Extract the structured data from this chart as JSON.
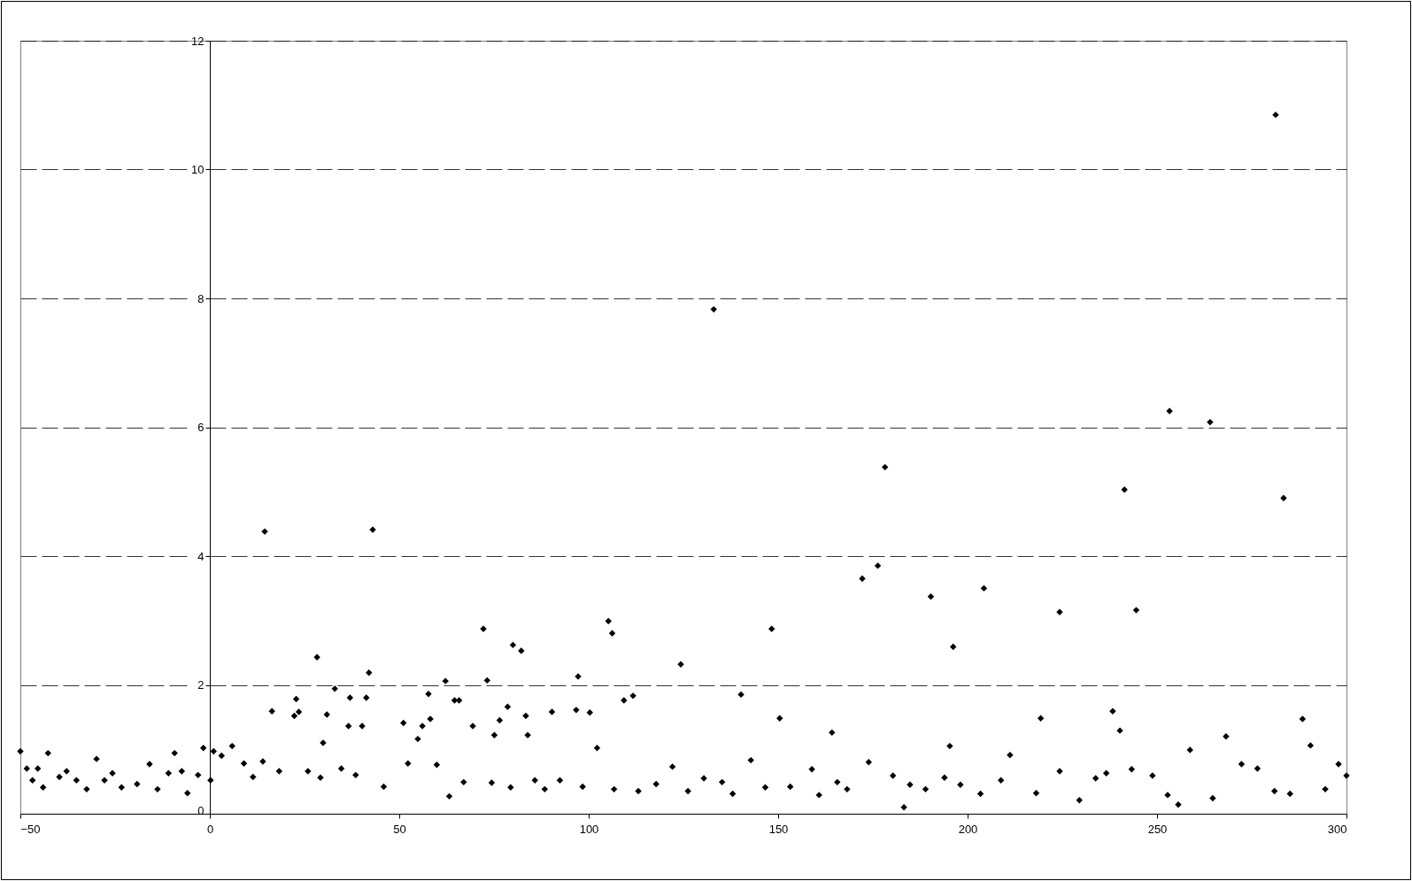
{
  "chart_data": {
    "type": "scatter",
    "marker": "diamond",
    "grid": "y",
    "line_style": "dashed",
    "legend": false,
    "xlim": [
      -50,
      300
    ],
    "xticks": [
      -50,
      0,
      50,
      100,
      150,
      200,
      250,
      300
    ],
    "ylim": [
      0,
      12
    ],
    "yticks": [
      0,
      2,
      4,
      6,
      8,
      10,
      12
    ],
    "series": [
      {
        "color": "#000000",
        "x": [
          14.5,
          43,
          28.3,
          33,
          42,
          72.2,
          73.2,
          80,
          82.2,
          62.2,
          97.2,
          105.2,
          106.2,
          124.3,
          133,
          148.3,
          140.2,
          172.2,
          176.3,
          178.2,
          190.3,
          196.2,
          204.3,
          224.3,
          241.4,
          244.5,
          253.3,
          264,
          281.3,
          283.4,
          238.3,
          240.2,
          288.4,
          164.2,
          150.4,
          219.3,
          195.3,
          109.3,
          111.7,
          90.3,
          57.7,
          23.5,
          22.8,
          16.4,
          22.3,
          37,
          41.3,
          30.9,
          36.6,
          40.2,
          58.2,
          78.6,
          76.5,
          83.4,
          96.7,
          100.3,
          69.4,
          64.6,
          65.8,
          51.1,
          54.9,
          56.1,
          75.1,
          83.9,
          -50,
          -48.3,
          -46.8,
          -45.4,
          -44,
          -42.7,
          -39.7,
          -37.8,
          -35.2,
          -32.5,
          -29.9,
          -27.8,
          -25.7,
          -23.3,
          -19.2,
          -15.9,
          -13.8,
          -10.9,
          -9.3,
          -7.4,
          -5.9,
          -3.1,
          -1.7,
          0.2,
          1,
          3.1,
          5.9,
          9,
          11.4,
          14,
          18.3,
          25.9,
          29.9,
          29.2,
          34.7,
          38.5,
          45.9,
          52.3,
          59.9,
          63.2,
          67,
          74.4,
          79.4,
          85.8,
          88.4,
          92.4,
          98.4,
          102.2,
          106.7,
          113.1,
          117.8,
          122.1,
          126.2,
          130.4,
          135.2,
          138,
          142.8,
          146.6,
          153.2,
          158.9,
          160.8,
          165.6,
          168.2,
          173.9,
          180.3,
          183.2,
          184.8,
          188.9,
          193.9,
          198.1,
          203.4,
          208.8,
          211.2,
          218.1,
          224.3,
          229.5,
          233.8,
          236.6,
          243.3,
          248.8,
          252.8,
          255.6,
          258.7,
          264.7,
          268.2,
          272.3,
          276.5,
          281,
          285.1,
          290.5,
          294.4,
          297.9,
          300
        ],
        "values": [
          4.38,
          4.41,
          2.43,
          1.94,
          2.19,
          2.87,
          2.07,
          2.62,
          2.53,
          2.06,
          2.13,
          2.99,
          2.8,
          2.32,
          7.83,
          2.87,
          1.85,
          3.65,
          3.85,
          5.38,
          3.37,
          2.59,
          3.5,
          3.13,
          5.03,
          3.16,
          6.25,
          6.08,
          10.85,
          4.9,
          1.59,
          1.29,
          1.47,
          1.26,
          1.48,
          1.48,
          1.05,
          1.76,
          1.83,
          1.58,
          1.86,
          1.58,
          1.78,
          1.59,
          1.52,
          1.8,
          1.8,
          1.54,
          1.36,
          1.36,
          1.47,
          1.66,
          1.45,
          1.52,
          1.61,
          1.57,
          1.36,
          1.76,
          1.76,
          1.41,
          1.16,
          1.36,
          1.22,
          1.22,
          0.97,
          0.7,
          0.52,
          0.7,
          0.41,
          0.94,
          0.57,
          0.66,
          0.52,
          0.38,
          0.85,
          0.52,
          0.63,
          0.41,
          0.46,
          0.77,
          0.38,
          0.63,
          0.94,
          0.66,
          0.32,
          0.6,
          1.02,
          0.52,
          0.97,
          0.9,
          1.05,
          0.78,
          0.57,
          0.81,
          0.66,
          0.66,
          1.1,
          0.56,
          0.7,
          0.6,
          0.42,
          0.78,
          0.76,
          0.27,
          0.49,
          0.48,
          0.41,
          0.52,
          0.38,
          0.52,
          0.42,
          1.02,
          0.38,
          0.35,
          0.46,
          0.73,
          0.35,
          0.55,
          0.49,
          0.31,
          0.83,
          0.41,
          0.42,
          0.69,
          0.29,
          0.49,
          0.38,
          0.8,
          0.59,
          0.1,
          0.45,
          0.38,
          0.56,
          0.45,
          0.31,
          0.52,
          0.91,
          0.32,
          0.66,
          0.21,
          0.55,
          0.63,
          0.69,
          0.59,
          0.29,
          0.14,
          0.99,
          0.24,
          1.2,
          0.77,
          0.7,
          0.35,
          0.31,
          1.06,
          0.38,
          0.77,
          0.59
        ]
      }
    ]
  }
}
